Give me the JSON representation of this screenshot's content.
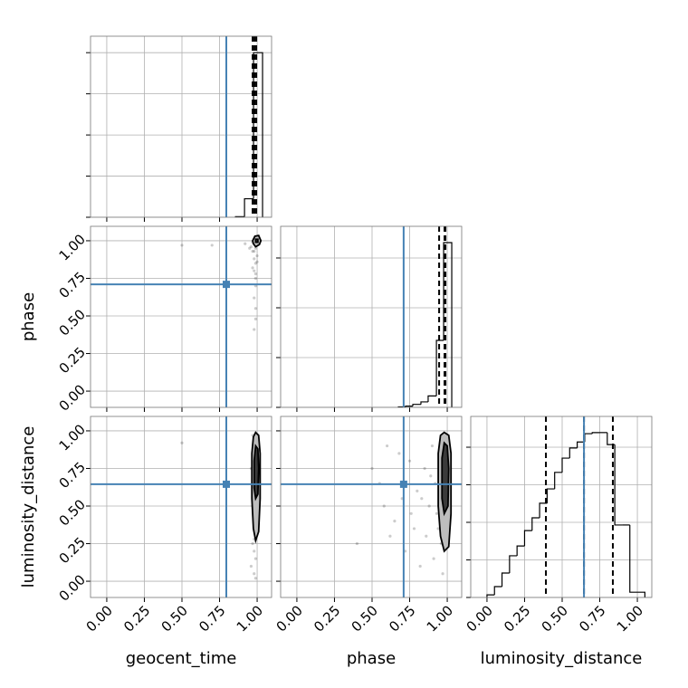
{
  "chart_data": {
    "type": "corner",
    "labels": [
      "geocent_time",
      "phase",
      "luminosity_distance"
    ],
    "truths": [
      0.795,
      0.71,
      0.645
    ],
    "truth_color": "#4682b4",
    "color": "#000000",
    "grid": true,
    "xlim": [
      -0.108,
      1.096
    ],
    "xticks": [
      {
        "value": 0,
        "label": "0.00"
      },
      {
        "value": 0.25,
        "label": "0.25"
      },
      {
        "value": 0.5,
        "label": "0.50"
      },
      {
        "value": 0.75,
        "label": "0.75"
      },
      {
        "value": 1,
        "label": "1.00"
      }
    ],
    "histograms": [
      {
        "bins": [
          0.856,
          0.916,
          0.976,
          1.036
        ],
        "counts": [
          15,
          450,
          4000
        ],
        "quantiles": [
          0.97,
          0.982,
          0.994
        ],
        "ylim": [
          0,
          4400
        ],
        "yticks": [
          0,
          1000,
          2000,
          3000,
          4000
        ]
      },
      {
        "bins": [
          0.675,
          0.723,
          0.771,
          0.825,
          0.873,
          0.928,
          0.976,
          1.03
        ],
        "counts": [
          10,
          25,
          60,
          110,
          230,
          1345,
          3309
        ],
        "quantiles": [
          0.946,
          0.982,
          0.988
        ],
        "ylim": [
          0,
          3636
        ],
        "yticks": [
          0,
          1000,
          2000,
          3000
        ]
      },
      {
        "bins": [
          0,
          0.05,
          0.1,
          0.15,
          0.2,
          0.25,
          0.3,
          0.35,
          0.4,
          0.45,
          0.5,
          0.55,
          0.6,
          0.65,
          0.7,
          0.75,
          0.8,
          0.85,
          0.9,
          0.95,
          1.0,
          1.05
        ],
        "counts": [
          7,
          29,
          65,
          111,
          137,
          178,
          212,
          251,
          289,
          333,
          371,
          398,
          414,
          436,
          439,
          439,
          407,
          193,
          193,
          14,
          14
        ],
        "quantiles": [
          0.392,
          0.645,
          0.837
        ],
        "ylim": [
          0,
          482
        ],
        "yticks": [
          0,
          100,
          200,
          300,
          400
        ]
      }
    ],
    "panels": [
      {
        "points": {
          "x": [
            0.98,
            0.99,
            1.0,
            0.97,
            0.99,
            0.98,
            1.0,
            0.99,
            0.96,
            0.98,
            0.99,
            0.97,
            1.0,
            0.98,
            0.99,
            0.5,
            0.7,
            0.92,
            0.95,
            0.98,
            0.99,
            0.97,
            0.98,
            1.0,
            0.99
          ],
          "y": [
            0.98,
            0.95,
            0.9,
            0.93,
            0.85,
            0.8,
            0.97,
            0.75,
            0.96,
            0.88,
            0.7,
            0.82,
            0.99,
            0.62,
            0.55,
            0.97,
            0.97,
            0.98,
            0.95,
            0.41,
            0.48,
            0.99,
            0.93,
            0.86,
            0.78
          ]
        },
        "contours": [
          {
            "x": [
              0.97,
              0.985,
              1.01,
              1.025,
              1.015,
              0.99,
              0.975
            ],
            "y": [
              1.0,
              1.03,
              1.035,
              1.0,
              0.975,
              0.96,
              0.98
            ]
          },
          {
            "x": [
              0.99,
              1.005,
              1.005,
              0.99
            ],
            "y": [
              0.99,
              0.99,
              1.01,
              1.01
            ]
          }
        ]
      },
      {
        "points": {
          "x": [
            0.97,
            0.98,
            0.99,
            1.0,
            0.96,
            0.98,
            0.99,
            0.97,
            1.0,
            0.98,
            0.99,
            0.97,
            0.98,
            0.99,
            0.96,
            0.5,
            0.98,
            0.99,
            0.97,
            1.0,
            0.98,
            0.99,
            0.97,
            0.98,
            0.99
          ],
          "y": [
            0.97,
            0.9,
            0.85,
            0.8,
            0.75,
            0.65,
            0.6,
            0.5,
            0.45,
            0.4,
            0.3,
            0.25,
            0.2,
            0.15,
            0.1,
            0.92,
            0.05,
            0.35,
            0.7,
            0.95,
            0.55,
            0.88,
            0.82,
            0.28,
            0.02
          ]
        },
        "contours": [
          {
            "x": [
              0.965,
              0.975,
              0.99,
              1.01,
              1.02,
              1.02,
              1.01,
              0.99,
              0.975,
              0.965
            ],
            "y": [
              0.85,
              0.96,
              0.99,
              0.97,
              0.85,
              0.55,
              0.33,
              0.27,
              0.35,
              0.55
            ]
          },
          {
            "x": [
              0.98,
              0.99,
              1.005,
              1.01,
              1.005,
              0.99,
              0.98
            ],
            "y": [
              0.8,
              0.9,
              0.88,
              0.75,
              0.58,
              0.55,
              0.62
            ]
          }
        ]
      },
      {
        "points": {
          "x": [
            0.4,
            0.55,
            0.6,
            0.65,
            0.7,
            0.72,
            0.75,
            0.78,
            0.8,
            0.82,
            0.85,
            0.86,
            0.88,
            0.9,
            0.91,
            0.92,
            0.93,
            0.95,
            0.96,
            0.97,
            0.98,
            0.99,
            0.94,
            0.89,
            0.83,
            0.76,
            0.68,
            0.62,
            0.58,
            0.5
          ],
          "y": [
            0.25,
            0.65,
            0.9,
            0.4,
            0.55,
            0.2,
            0.8,
            0.35,
            0.6,
            0.1,
            0.75,
            0.3,
            0.5,
            0.9,
            0.15,
            0.65,
            0.45,
            0.8,
            0.25,
            0.05,
            0.95,
            0.6,
            0.35,
            0.7,
            0.55,
            0.45,
            0.85,
            0.3,
            0.5,
            0.75
          ]
        },
        "contours": [
          {
            "x": [
              0.94,
              0.955,
              0.98,
              1.01,
              1.025,
              1.025,
              1.01,
              0.98,
              0.955,
              0.94
            ],
            "y": [
              0.85,
              0.97,
              0.99,
              0.97,
              0.85,
              0.45,
              0.23,
              0.2,
              0.3,
              0.5
            ]
          },
          {
            "x": [
              0.965,
              0.98,
              1.0,
              1.01,
              1.005,
              0.98,
              0.965
            ],
            "y": [
              0.82,
              0.92,
              0.9,
              0.75,
              0.5,
              0.45,
              0.55
            ]
          }
        ]
      }
    ]
  }
}
